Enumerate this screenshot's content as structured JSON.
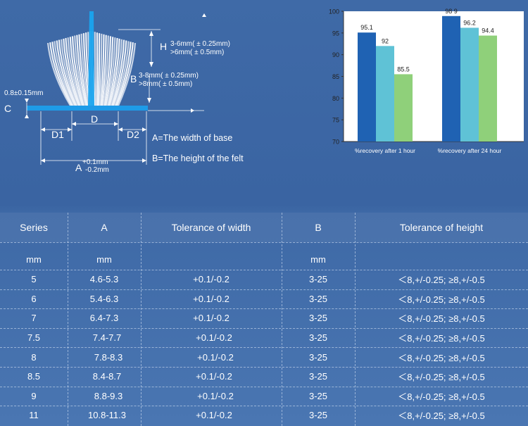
{
  "diagram": {
    "labels": {
      "h_letter": "H",
      "h_line1": "3-6mm( ± 0.25mm)",
      "h_line2": ">6mm( ± 0.5mm)",
      "b_letter": "B",
      "b_line1": "3-8mm( ± 0.25mm)",
      "b_line2": ">8mm( ± 0.5mm)",
      "c_letter": "C",
      "c_value": "0.8±0.15mm",
      "d_letter": "D",
      "d1": "D1",
      "d2": "D2",
      "a_letter": "A",
      "a_plus": "+0.1mm",
      "a_minus": "-0.2mm"
    },
    "legend": [
      "A=The width of base",
      "B=The height of the felt"
    ]
  },
  "chart_data": {
    "type": "bar",
    "categories": [
      "%recovery after 1 hour",
      "%recovery after 24 hour"
    ],
    "series": [
      {
        "values": [
          95.1,
          98.9
        ],
        "color": "#1f62b3"
      },
      {
        "values": [
          92,
          96.2
        ],
        "color": "#5fc2d6"
      },
      {
        "values": [
          85.5,
          94.4
        ],
        "color": "#8fd07a"
      }
    ],
    "value_labels": [
      [
        "95.1",
        "92",
        "85.5"
      ],
      [
        "98 9",
        "96.2",
        "94.4"
      ]
    ],
    "ylim": [
      70,
      100
    ],
    "yticks": [
      70,
      75,
      80,
      85,
      90,
      95,
      100
    ],
    "title": "",
    "xlabel": "",
    "ylabel": "",
    "grid": false,
    "background": "#ffffff"
  },
  "table": {
    "headers": [
      "Series",
      "A",
      "Tolerance of width",
      "B",
      "Tolerance of height"
    ],
    "units": [
      "mm",
      "mm",
      "",
      "mm",
      ""
    ],
    "rows": [
      [
        "5",
        "4.6-5.3",
        "+0.1/-0.2",
        "3-25",
        "＜8,+/-0.25;  ≥8,+/-0.5"
      ],
      [
        "6",
        "5.4-6.3",
        "+0.1/-0.2",
        "3-25",
        "＜8,+/-0.25;  ≥8,+/-0.5"
      ],
      [
        "7",
        "6.4-7.3",
        "+0.1/-0.2",
        "3-25",
        "＜8,+/-0.25;  ≥8,+/-0.5"
      ],
      [
        "7.5",
        "7.4-7.7",
        "+0.1/-0.2",
        "3-25",
        "＜8,+/-0.25;  ≥8,+/-0.5"
      ],
      [
        "8",
        "7.8-8.3",
        "+0.1/-0.2",
        "3-25",
        "＜8,+/-0.25;  ≥8,+/-0.5"
      ],
      [
        "8.5",
        "8.4-8.7",
        "+0.1/-0.2",
        "3-25",
        "＜8,+/-0.25;  ≥8,+/-0.5"
      ],
      [
        "9",
        "8.8-9.3",
        "+0.1/-0.2",
        "3-25",
        "＜8,+/-0.25;  ≥8,+/-0.5"
      ],
      [
        "11",
        "10.8-11.3",
        "+0.1/-0.2",
        "3-25",
        "＜8,+/-0.25;  ≥8,+/-0.5"
      ]
    ]
  },
  "colors": {
    "background": "#3d68a5",
    "felt": "#e8eef6",
    "base": "#1e9be8",
    "table_line": "#dce8f8"
  }
}
